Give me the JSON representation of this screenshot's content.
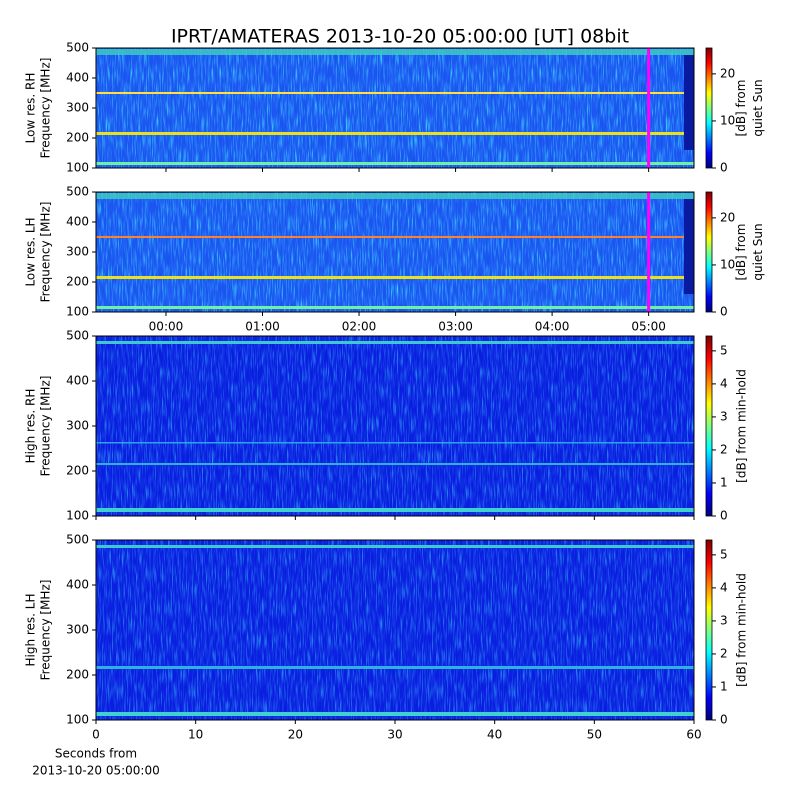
{
  "chart_data": [
    {
      "type": "spectrogram",
      "title": "IPRT/AMATERAS 2013-10-20 05:00:00 [UT]   08bit",
      "ylabel": [
        "Low res. RH",
        "Frequency [MHz]"
      ],
      "ylim": [
        100,
        500
      ],
      "yticks": [
        100,
        200,
        300,
        400,
        500
      ],
      "xlim": [
        -0.725,
        5.47
      ],
      "xticks": [
        0,
        1,
        2,
        3,
        4,
        5
      ],
      "xtick_labels": false,
      "cursor": 5,
      "cursor_color": "#ff00ff",
      "colormap": "jet",
      "colorbar": {
        "label": [
          "[dB] from",
          "quiet Sun"
        ],
        "lim": [
          0,
          25.5
        ],
        "ticks": [
          0,
          10,
          20
        ]
      }
    },
    {
      "type": "spectrogram",
      "ylabel": [
        "Low res. LH",
        "Frequency [MHz]"
      ],
      "ylim": [
        100,
        500
      ],
      "yticks": [
        100,
        200,
        300,
        400,
        500
      ],
      "xlim": [
        -0.725,
        5.47
      ],
      "xticks": [
        {
          "value": 0,
          "label": "00:00"
        },
        {
          "value": 1,
          "label": "01:00"
        },
        {
          "value": 2,
          "label": "02:00"
        },
        {
          "value": 3,
          "label": "03:00"
        },
        {
          "value": 4,
          "label": "04:00"
        },
        {
          "value": 5,
          "label": "05:00"
        }
      ],
      "xtick_labels": true,
      "cursor": 5,
      "cursor_color": "#ff00ff",
      "colormap": "jet",
      "colorbar": {
        "label": [
          "[dB] from",
          "quiet Sun"
        ],
        "lim": [
          0,
          25.5
        ],
        "ticks": [
          0,
          10,
          20
        ]
      }
    },
    {
      "type": "spectrogram",
      "ylabel": [
        "High res. RH",
        "Frequency [MHz]"
      ],
      "ylim": [
        100,
        500
      ],
      "yticks": [
        100,
        200,
        300,
        400,
        500
      ],
      "xlim": [
        0,
        60
      ],
      "xticks": [
        0,
        10,
        20,
        30,
        40,
        50,
        60
      ],
      "xtick_labels": false,
      "colormap": "jet",
      "colorbar": {
        "label": [
          "[dB] from min-hold"
        ],
        "lim": [
          0,
          5.45
        ],
        "ticks": [
          0,
          1,
          2,
          3,
          4,
          5
        ]
      }
    },
    {
      "type": "spectrogram",
      "ylabel": [
        "High res. LH",
        "Frequency [MHz]"
      ],
      "ylim": [
        100,
        500
      ],
      "yticks": [
        100,
        200,
        300,
        400,
        500
      ],
      "xlim": [
        0,
        60
      ],
      "xticks": [
        0,
        10,
        20,
        30,
        40,
        50,
        60
      ],
      "xtick_labels": true,
      "xlabel": [
        "Seconds from",
        "2013-10-20 05:00:00"
      ],
      "colormap": "jet",
      "colorbar": {
        "label": [
          "[dB] from min-hold"
        ],
        "lim": [
          0,
          5.45
        ],
        "ticks": [
          0,
          1,
          2,
          3,
          4,
          5
        ]
      }
    }
  ]
}
